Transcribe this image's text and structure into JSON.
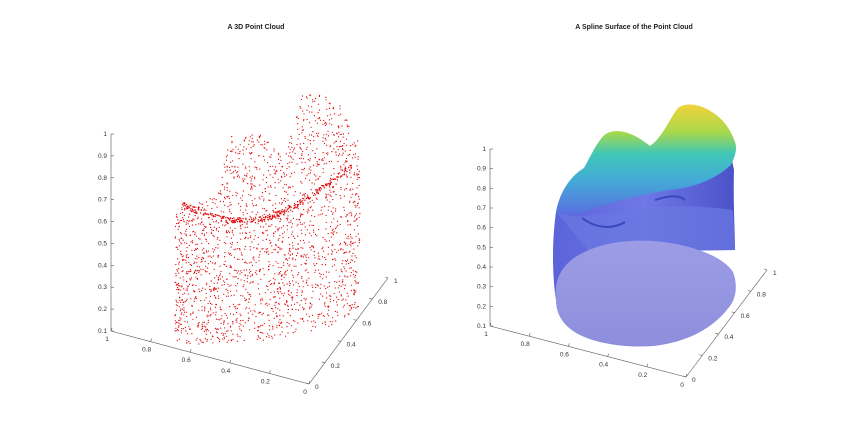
{
  "chart_data": [
    {
      "type": "scatter",
      "title": "A 3D Point Cloud",
      "marker_color": "#e00000",
      "xlabel": "",
      "ylabel": "",
      "zlabel": "",
      "x_ticks": [
        "0",
        "0.2",
        "0.4",
        "0.6",
        "0.8",
        "1"
      ],
      "y_ticks": [
        "0",
        "0.2",
        "0.4",
        "0.6",
        "0.8",
        "1"
      ],
      "z_ticks": [
        "0.1",
        "0.2",
        "0.3",
        "0.4",
        "0.5",
        "0.6",
        "0.7",
        "0.8",
        "0.9",
        "1"
      ],
      "xlim": [
        0,
        1
      ],
      "ylim": [
        0,
        1
      ],
      "zlim": [
        0.1,
        1
      ],
      "grid": false
    },
    {
      "type": "surface",
      "title": "A Spline Surface of the Point Cloud",
      "colormap": [
        "#3a4ec8",
        "#5b6ee0",
        "#44a8d8",
        "#3fc7b8",
        "#a8d84a",
        "#f2d33a"
      ],
      "xlabel": "",
      "ylabel": "",
      "zlabel": "",
      "x_ticks": [
        "0",
        "0.2",
        "0.4",
        "0.6",
        "0.8",
        "1"
      ],
      "y_ticks": [
        "0",
        "0.2",
        "0.4",
        "0.6",
        "0.8",
        "1"
      ],
      "z_ticks": [
        "0.1",
        "0.2",
        "0.3",
        "0.4",
        "0.5",
        "0.6",
        "0.7",
        "0.8",
        "0.9",
        "1"
      ],
      "xlim": [
        0,
        1
      ],
      "ylim": [
        0,
        1
      ],
      "zlim": [
        0.1,
        1
      ],
      "grid": false
    }
  ]
}
